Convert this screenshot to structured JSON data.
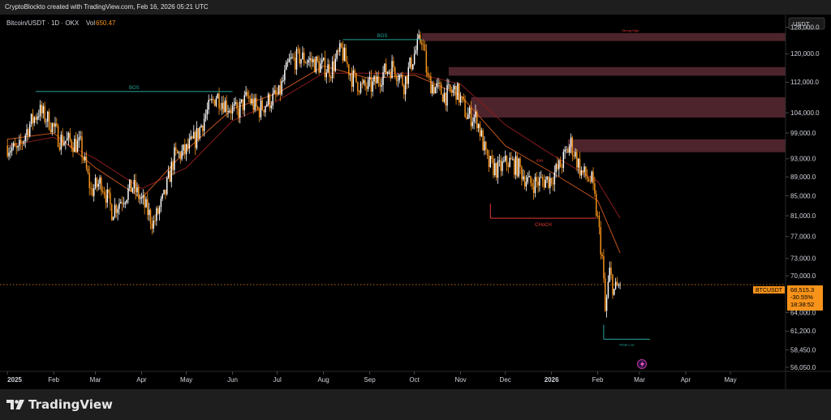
{
  "header": {
    "credit": "CryptoBlockto created with TradingView.com, Feb 16, 2026 05:21 UTC"
  },
  "footer": {
    "brand": "TradingView",
    "brand_icon": "tradingview-logo-icon"
  },
  "colors": {
    "candle": "#f7931a",
    "candle_up": "#ffffff",
    "ma_fast": "#c0521b",
    "ma_slow": "#8a1c1c",
    "zone": "#5a2a33",
    "bos": "#26a69a",
    "choch": "#e53935",
    "price_tag": "#f7931a",
    "axis_text": "#d1d4dc"
  },
  "chart_data": {
    "type": "line",
    "title": "Bitcoin/USDT · 1D · OKX",
    "volume_label": "Vol",
    "volume_value": "650.47",
    "currency_button": "USDT",
    "y_scale": "log",
    "ylim": [
      55500,
      132000
    ],
    "xlim": [
      "2024-12-27",
      "2026-06-07"
    ],
    "x_ticks": [
      {
        "label": "2025",
        "date": "2025-01-01",
        "bold": true
      },
      {
        "label": "Feb",
        "date": "2025-02-01"
      },
      {
        "label": "Mar",
        "date": "2025-03-01"
      },
      {
        "label": "Apr",
        "date": "2025-04-01"
      },
      {
        "label": "May",
        "date": "2025-05-01"
      },
      {
        "label": "Jun",
        "date": "2025-06-01"
      },
      {
        "label": "Jul",
        "date": "2025-07-01"
      },
      {
        "label": "Aug",
        "date": "2025-08-01"
      },
      {
        "label": "Sep",
        "date": "2025-09-01"
      },
      {
        "label": "Oct",
        "date": "2025-10-01"
      },
      {
        "label": "Nov",
        "date": "2025-11-01"
      },
      {
        "label": "Dec",
        "date": "2025-12-01"
      },
      {
        "label": "2026",
        "date": "2026-01-01",
        "bold": true
      },
      {
        "label": "Feb",
        "date": "2026-02-01"
      },
      {
        "label": "Mar",
        "date": "2026-03-01"
      },
      {
        "label": "Apr",
        "date": "2026-04-01"
      },
      {
        "label": "May",
        "date": "2026-05-01"
      }
    ],
    "y_ticks": [
      {
        "label": "128,000.0",
        "value": 128000
      },
      {
        "label": "120,000.0",
        "value": 120000
      },
      {
        "label": "112,000.0",
        "value": 112000
      },
      {
        "label": "104,000.0",
        "value": 104000
      },
      {
        "label": "99,000.0",
        "value": 99000
      },
      {
        "label": "93,000.0",
        "value": 93000
      },
      {
        "label": "89,000.0",
        "value": 89000
      },
      {
        "label": "85,000.0",
        "value": 85000
      },
      {
        "label": "81,000.0",
        "value": 81000
      },
      {
        "label": "77,000.0",
        "value": 77000
      },
      {
        "label": "73,000.0",
        "value": 73000
      },
      {
        "label": "70,000.0",
        "value": 70000
      },
      {
        "label": "64,000.0",
        "value": 64000
      },
      {
        "label": "61,200.0",
        "value": 61200
      },
      {
        "label": "58,450.0",
        "value": 58450
      },
      {
        "label": "56,050.0",
        "value": 56050
      }
    ],
    "last_price": {
      "symbol": "BTCUSDT",
      "price": "68,515.3",
      "change": "-30.55%",
      "countdown": "18:38:52",
      "value": 68515.3
    },
    "series": [
      {
        "type": "close",
        "x": [
          "2025-01-01",
          "2025-01-08",
          "2025-01-15",
          "2025-01-22",
          "2025-01-29",
          "2025-02-05",
          "2025-02-12",
          "2025-02-19",
          "2025-02-26",
          "2025-03-05",
          "2025-03-12",
          "2025-03-19",
          "2025-03-26",
          "2025-04-02",
          "2025-04-09",
          "2025-04-16",
          "2025-04-23",
          "2025-04-30",
          "2025-05-07",
          "2025-05-14",
          "2025-05-21",
          "2025-05-28",
          "2025-06-04",
          "2025-06-11",
          "2025-06-18",
          "2025-06-25",
          "2025-07-02",
          "2025-07-09",
          "2025-07-16",
          "2025-07-23",
          "2025-07-30",
          "2025-08-06",
          "2025-08-13",
          "2025-08-20",
          "2025-08-27",
          "2025-09-03",
          "2025-09-10",
          "2025-09-17",
          "2025-09-24",
          "2025-10-01",
          "2025-10-06",
          "2025-10-10",
          "2025-10-15",
          "2025-10-22",
          "2025-10-29",
          "2025-11-05",
          "2025-11-12",
          "2025-11-19",
          "2025-11-26",
          "2025-12-03",
          "2025-12-10",
          "2025-12-17",
          "2025-12-24",
          "2025-12-31",
          "2026-01-07",
          "2026-01-14",
          "2026-01-21",
          "2026-01-28",
          "2026-02-01",
          "2026-02-04",
          "2026-02-06",
          "2026-02-09",
          "2026-02-12",
          "2026-02-16"
        ],
        "y": [
          96000,
          94500,
          100500,
          104500,
          102000,
          97500,
          97000,
          96000,
          86000,
          88000,
          82000,
          84500,
          87000,
          83500,
          79500,
          84500,
          93500,
          94500,
          97500,
          103500,
          108500,
          106000,
          104000,
          108000,
          104500,
          107000,
          108500,
          117500,
          119000,
          118000,
          116500,
          115500,
          121000,
          113500,
          110500,
          111000,
          114500,
          116500,
          111500,
          120000,
          125000,
          112500,
          110500,
          108500,
          110000,
          103500,
          102500,
          92000,
          90500,
          92500,
          91000,
          87500,
          88000,
          88500,
          91500,
          96500,
          90000,
          88000,
          80000,
          73000,
          64000,
          70500,
          67500,
          68515
        ]
      },
      {
        "type": "ma_fast",
        "x": [
          "2025-01-01",
          "2025-02-01",
          "2025-03-01",
          "2025-04-01",
          "2025-05-01",
          "2025-06-01",
          "2025-07-01",
          "2025-08-01",
          "2025-09-01",
          "2025-10-01",
          "2025-11-01",
          "2025-12-01",
          "2026-01-01",
          "2026-02-01",
          "2026-02-16"
        ],
        "y": [
          97500,
          99000,
          91000,
          84500,
          95000,
          105000,
          109000,
          116500,
          113000,
          114000,
          108500,
          96000,
          90000,
          84000,
          74000
        ]
      },
      {
        "type": "ma_slow",
        "x": [
          "2025-01-01",
          "2025-02-01",
          "2025-03-01",
          "2025-04-01",
          "2025-05-01",
          "2025-06-01",
          "2025-07-01",
          "2025-08-01",
          "2025-09-01",
          "2025-10-01",
          "2025-11-01",
          "2025-12-01",
          "2026-01-01",
          "2026-02-01",
          "2026-02-16"
        ],
        "y": [
          96000,
          98000,
          93000,
          86500,
          91000,
          102000,
          107000,
          114500,
          114500,
          114500,
          111500,
          101000,
          94000,
          88000,
          80500
        ]
      }
    ],
    "zones": [
      {
        "from": "2025-10-06",
        "y1": 123800,
        "y2": 126200,
        "label": "Strong High"
      },
      {
        "from": "2025-10-24",
        "y1": 113800,
        "y2": 116200,
        "label": ""
      },
      {
        "from": "2025-11-08",
        "y1": 102800,
        "y2": 108000,
        "label": ""
      },
      {
        "from": "2026-01-12",
        "y1": 94500,
        "y2": 97500,
        "label": ""
      }
    ],
    "annotations": [
      {
        "type": "bos",
        "label": "BOS",
        "x1": "2025-01-20",
        "x2": "2025-06-01",
        "y": 109500,
        "color": "#26a69a"
      },
      {
        "type": "bos",
        "label": "BOS",
        "x1": "2025-08-14",
        "x2": "2025-10-06",
        "y": 124200,
        "color": "#26a69a"
      },
      {
        "type": "choch",
        "label": "CHoCH",
        "x1": "2025-11-21",
        "x2": "2026-01-31",
        "y": 80500,
        "color": "#e53935"
      },
      {
        "type": "idm",
        "label": "IDM",
        "x1": "2025-12-24",
        "x2": "2025-12-24",
        "y": 91800,
        "color": "#e53935"
      },
      {
        "type": "weak_low",
        "label": "Weak Low",
        "x1": "2026-02-05",
        "x2": "2026-03-08",
        "y": 60000,
        "color": "#26a69a"
      }
    ]
  }
}
